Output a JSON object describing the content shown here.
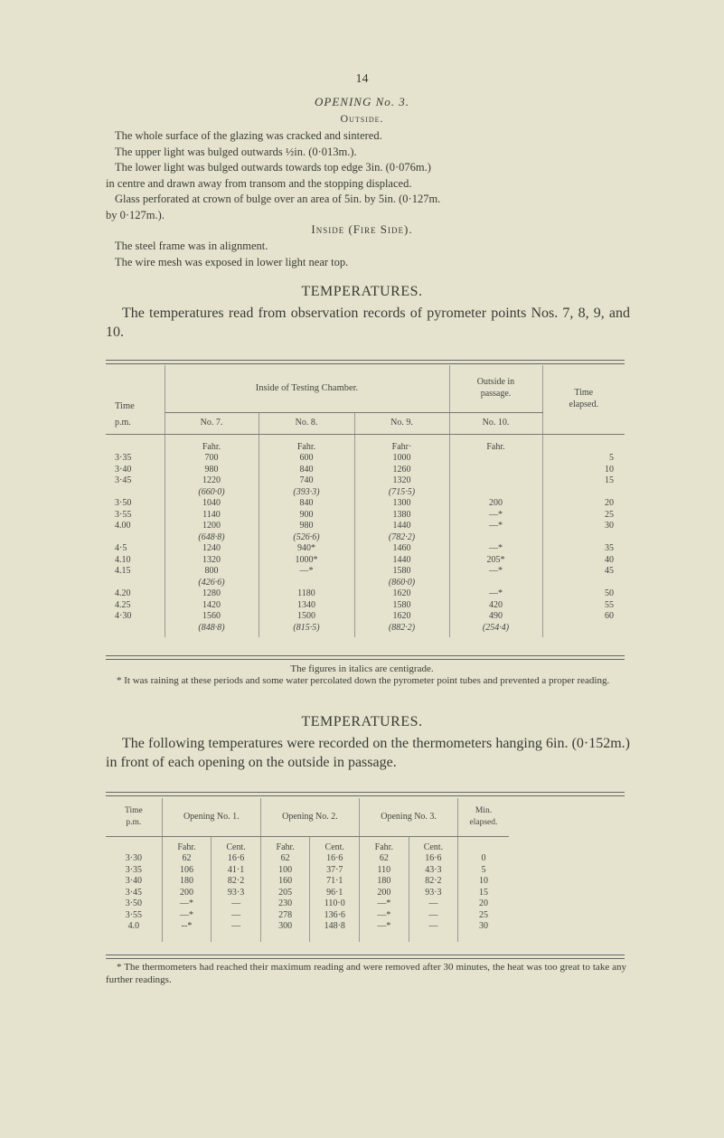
{
  "page_number": "14",
  "section_title": "OPENING No. 3.",
  "outside": {
    "heading": "Outside.",
    "lines": [
      "The whole surface of the glazing was cracked and sintered.",
      "The upper light was bulged outwards ½in. (0·013m.).",
      "The lower light was bulged outwards towards top edge 3in. (0·076m.)",
      "in centre and drawn away from transom and the stopping displaced.",
      "Glass perforated at crown of bulge over an area of 5in. by 5in. (0·127m.",
      "by 0·127m.)."
    ]
  },
  "inside": {
    "heading": "Inside (Fire Side).",
    "lines": [
      "The steel frame was in alignment.",
      "The wire mesh was exposed in lower light near top."
    ]
  },
  "temps1": {
    "heading": "TEMPERATURES.",
    "text": "The temperatures read from observation records of pyrometer points Nos. 7, 8, 9, and 10.",
    "table": {
      "header": {
        "time": "Time",
        "pm": "p.m.",
        "inside": "Inside of Testing Chamber.",
        "outside": "Outside in passage.",
        "elapsed": "Time elapsed.",
        "cols": [
          "No. 7.",
          "No. 8.",
          "No. 9.",
          "No. 10."
        ],
        "units": [
          "Fahr.",
          "Fahr.",
          "Fahr·",
          "Fahr."
        ]
      },
      "rows": [
        {
          "time": "3·35",
          "v": [
            "700",
            "600",
            "1000",
            "",
            "5"
          ]
        },
        {
          "time": "3·40",
          "v": [
            "980",
            "840",
            "1260",
            "",
            "10"
          ]
        },
        {
          "time": "3·45",
          "v": [
            "1220",
            "740",
            "1320",
            "",
            "15"
          ]
        },
        {
          "time": "",
          "c": true,
          "v": [
            "(660·0)",
            "(393·3)",
            "(715·5)",
            "",
            ""
          ]
        },
        {
          "time": "3·50",
          "v": [
            "1040",
            "840",
            "1300",
            "200",
            "20"
          ]
        },
        {
          "time": "3·55",
          "v": [
            "1140",
            "900",
            "1380",
            "—*",
            "25"
          ]
        },
        {
          "time": "4.00",
          "v": [
            "1200",
            "980",
            "1440",
            "—*",
            "30"
          ]
        },
        {
          "time": "",
          "c": true,
          "v": [
            "(648·8)",
            "(526·6)",
            "(782·2)",
            "",
            ""
          ]
        },
        {
          "time": "4·5",
          "v": [
            "1240",
            "940*",
            "1460",
            "—*",
            "35"
          ]
        },
        {
          "time": "4.10",
          "v": [
            "1320",
            "1000*",
            "1440",
            "205*",
            "40"
          ]
        },
        {
          "time": "4.15",
          "v": [
            "800",
            "—*",
            "1580",
            "—*",
            "45"
          ]
        },
        {
          "time": "",
          "c": true,
          "v": [
            "(426·6)",
            "",
            "(860·0)",
            "",
            ""
          ]
        },
        {
          "time": "4.20",
          "v": [
            "1280",
            "1180",
            "1620",
            "—*",
            "50"
          ]
        },
        {
          "time": "4.25",
          "v": [
            "1420",
            "1340",
            "1580",
            "420",
            "55"
          ]
        },
        {
          "time": "4·30",
          "v": [
            "1560",
            "1500",
            "1620",
            "490",
            "60"
          ]
        },
        {
          "time": "",
          "c": true,
          "v": [
            "(848·8)",
            "(815·5)",
            "(882·2)",
            "(254·4)",
            ""
          ]
        }
      ]
    },
    "note_italics": "The figures in italics are centigrade.",
    "footnote": "* It was raining at these periods and some water percolated down the pyrometer point tubes and prevented a proper reading."
  },
  "temps2": {
    "heading": "TEMPERATURES.",
    "text": "The following temperatures were recorded on the thermometers hanging 6in. (0·152m.) in front of each opening on the outside in passage.",
    "table": {
      "header": {
        "time": "Time p.m.",
        "openings": [
          "Opening No. 1.",
          "Opening No. 2.",
          "Opening No. 3."
        ],
        "elapsed": "Min. elapsed.",
        "units": [
          "Fahr.",
          "Cent.",
          "Fahr.",
          "Cent.",
          "Fahr.",
          "Cent."
        ]
      },
      "rows": [
        {
          "time": "3·30",
          "v": [
            "62",
            "16·6",
            "62",
            "16·6",
            "62",
            "16·6",
            "0"
          ]
        },
        {
          "time": "3·35",
          "v": [
            "106",
            "41·1",
            "100",
            "37·7",
            "110",
            "43·3",
            "5"
          ]
        },
        {
          "time": "3·40",
          "v": [
            "180",
            "82·2",
            "160",
            "71·1",
            "180",
            "82·2",
            "10"
          ]
        },
        {
          "time": "3·45",
          "v": [
            "200",
            "93·3",
            "205",
            "96·1",
            "200",
            "93·3",
            "15"
          ]
        },
        {
          "time": "3·50",
          "v": [
            "—*",
            "—",
            "230",
            "110·0",
            "—*",
            "—",
            "20"
          ]
        },
        {
          "time": "3·55",
          "v": [
            "—*",
            "—",
            "278",
            "136·6",
            "—*",
            "—",
            "25"
          ]
        },
        {
          "time": "4.0",
          "v": [
            "--*",
            "—",
            "300",
            "148·8",
            "—*",
            "—",
            "30"
          ]
        }
      ]
    },
    "footnote": "* The thermometers had reached their maximum reading and were removed after 30 minutes, the heat was too great to take any further readings."
  }
}
